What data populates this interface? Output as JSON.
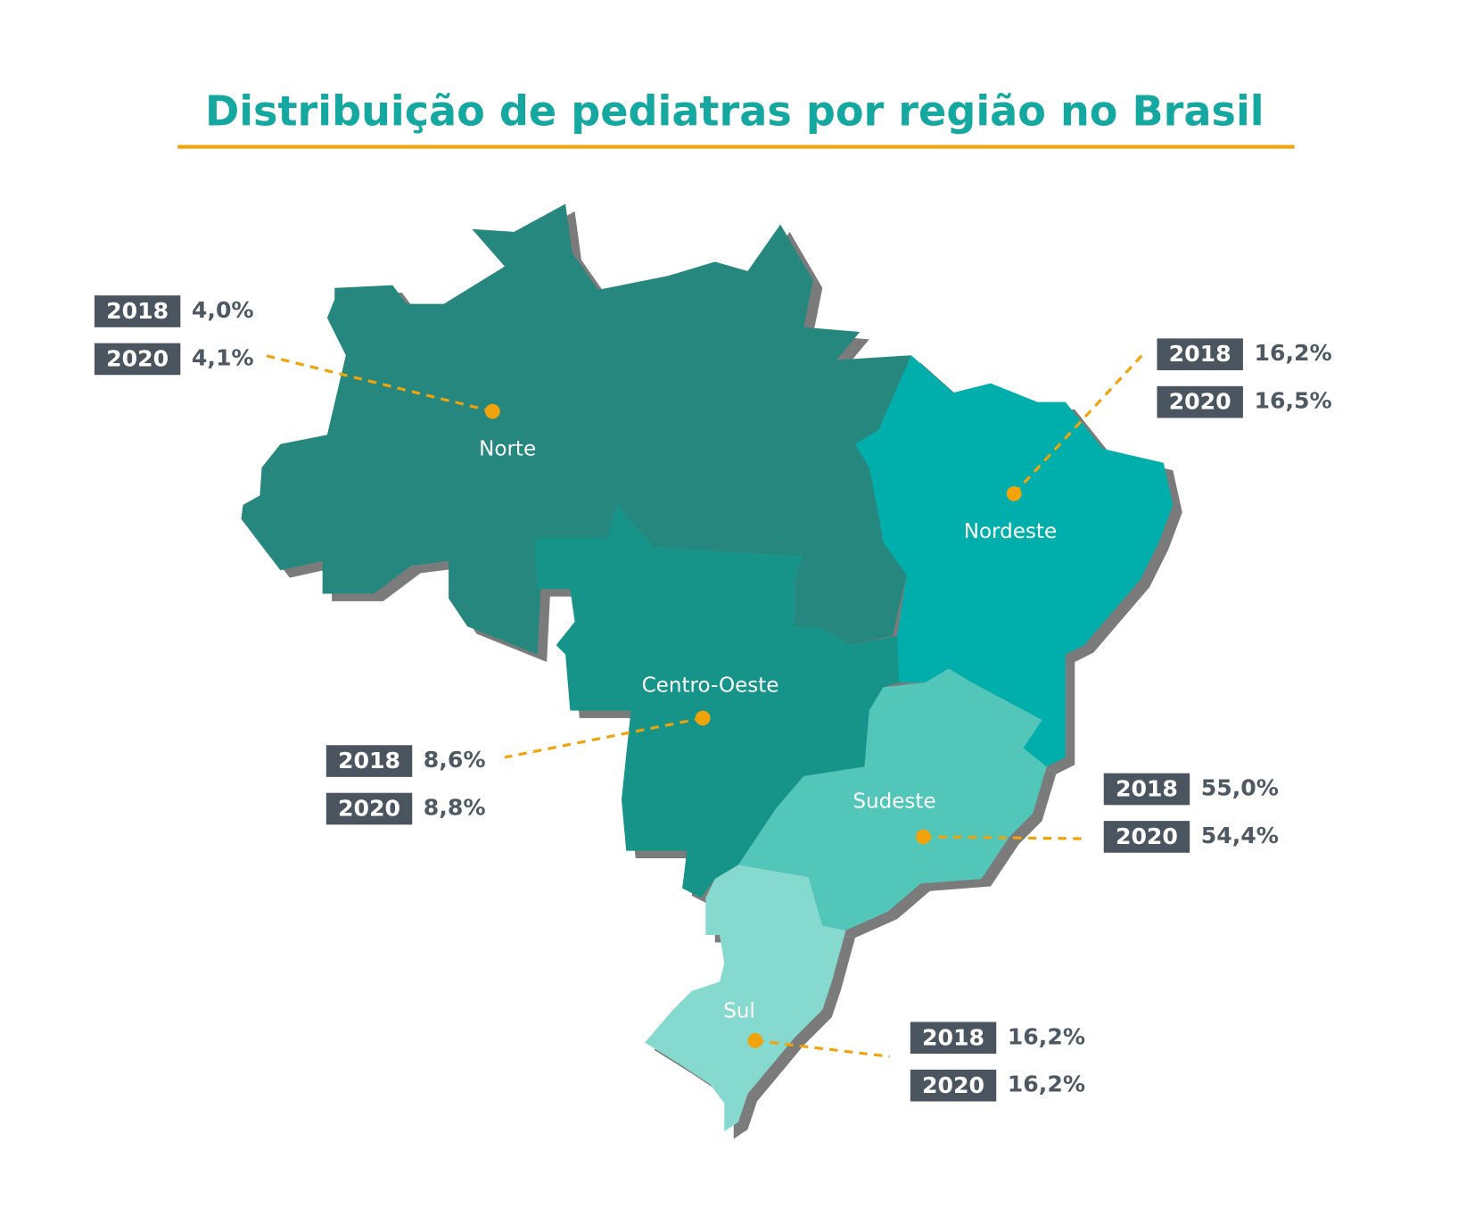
{
  "title": "Distribuição de pediatras por região no Brasil",
  "regions": [
    {
      "name": "Norte",
      "stats": [
        {
          "year": "2018",
          "value": "4,0%"
        },
        {
          "year": "2020",
          "value": "4,1%"
        }
      ]
    },
    {
      "name": "Nordeste",
      "stats": [
        {
          "year": "2018",
          "value": "16,2%"
        },
        {
          "year": "2020",
          "value": "16,5%"
        }
      ]
    },
    {
      "name": "Centro-Oeste",
      "stats": [
        {
          "year": "2018",
          "value": "8,6%"
        },
        {
          "year": "2020",
          "value": "8,8%"
        }
      ]
    },
    {
      "name": "Sudeste",
      "stats": [
        {
          "year": "2018",
          "value": "55,0%"
        },
        {
          "year": "2020",
          "value": "54,4%"
        }
      ]
    },
    {
      "name": "Sul",
      "stats": [
        {
          "year": "2018",
          "value": "16,2%"
        },
        {
          "year": "2020",
          "value": "16,2%"
        }
      ]
    }
  ]
}
